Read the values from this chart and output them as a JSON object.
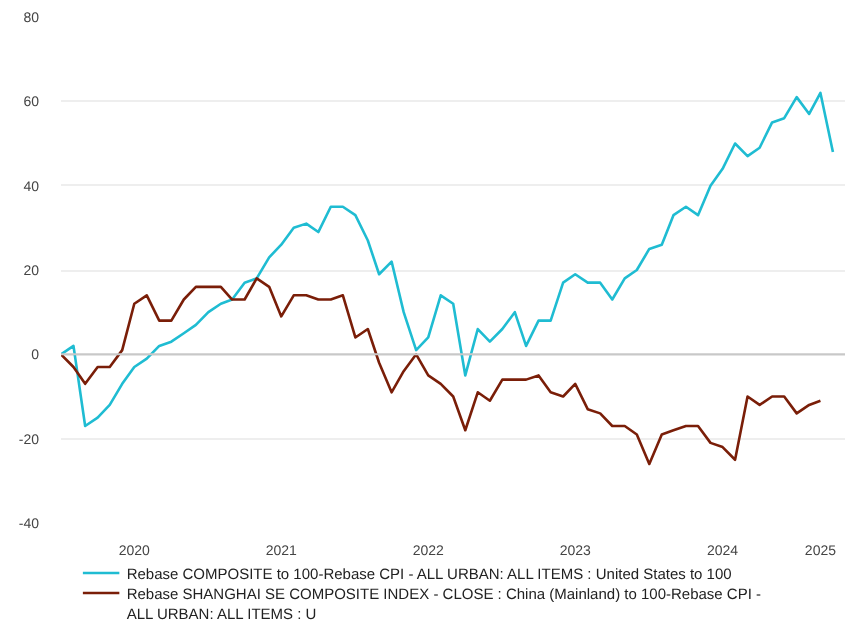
{
  "chart_data": {
    "type": "line",
    "x": [
      "2020-01",
      "2020-02",
      "2020-03",
      "2020-04",
      "2020-05",
      "2020-06",
      "2020-07",
      "2020-08",
      "2020-09",
      "2020-10",
      "2020-11",
      "2020-12",
      "2021-01",
      "2021-02",
      "2021-03",
      "2021-04",
      "2021-05",
      "2021-06",
      "2021-07",
      "2021-08",
      "2021-09",
      "2021-10",
      "2021-11",
      "2021-12",
      "2022-01",
      "2022-02",
      "2022-03",
      "2022-04",
      "2022-05",
      "2022-06",
      "2022-07",
      "2022-08",
      "2022-09",
      "2022-10",
      "2022-11",
      "2022-12",
      "2023-01",
      "2023-02",
      "2023-03",
      "2023-04",
      "2023-05",
      "2023-06",
      "2023-07",
      "2023-08",
      "2023-09",
      "2023-10",
      "2023-11",
      "2023-12",
      "2024-01",
      "2024-02",
      "2024-03",
      "2024-04",
      "2024-05",
      "2024-06",
      "2024-07",
      "2024-08",
      "2024-09",
      "2024-10",
      "2024-11",
      "2024-12",
      "2025-01",
      "2025-02",
      "2025-03",
      "2025-04"
    ],
    "series": [
      {
        "name": "Rebase COMPOSITE to 100-Rebase CPI - ALL URBAN: ALL ITEMS : United States to 100",
        "color": "#1fbcd2",
        "values": [
          0,
          2,
          -17,
          -15,
          -12,
          -7,
          -3,
          -1,
          2,
          3,
          5,
          7,
          10,
          12,
          13,
          17,
          18,
          23,
          26,
          30,
          31,
          29,
          35,
          35,
          33,
          27,
          19,
          22,
          10,
          1,
          4,
          14,
          12,
          -5,
          6,
          3,
          6,
          10,
          2,
          8,
          8,
          17,
          19,
          17,
          17,
          13,
          18,
          20,
          25,
          26,
          33,
          35,
          33,
          40,
          44,
          50,
          47,
          49,
          55,
          56,
          61,
          57,
          62,
          48
        ]
      },
      {
        "name": "Rebase SHANGHAI SE COMPOSITE INDEX - CLOSE : China (Mainland) to 100-Rebase CPI - ALL URBAN: ALL ITEMS : U",
        "color": "#7a1e08",
        "values": [
          0,
          -3,
          -7,
          -3,
          -3,
          1,
          12,
          14,
          8,
          8,
          13,
          16,
          16,
          16,
          13,
          13,
          18,
          16,
          9,
          14,
          14,
          13,
          13,
          14,
          4,
          6,
          -2,
          -9,
          -4,
          0,
          -5,
          -7,
          -10,
          -18,
          -9,
          -11,
          -6,
          -6,
          -6,
          -5,
          -9,
          -10,
          -7,
          -13,
          -14,
          -17,
          -17,
          -19,
          -26,
          -19,
          -18,
          -17,
          -17,
          -21,
          -22,
          -25,
          -10,
          -12,
          -10,
          -10,
          -14,
          -12,
          -11,
          null
        ]
      }
    ],
    "xlim": [
      "2020-01",
      "2025-05"
    ],
    "xticks": [
      {
        "value": "2020-07",
        "label": "2020"
      },
      {
        "value": "2021-07",
        "label": "2021"
      },
      {
        "value": "2022-07",
        "label": "2022"
      },
      {
        "value": "2023-07",
        "label": "2023"
      },
      {
        "value": "2024-07",
        "label": "2024"
      },
      {
        "value": "2025-03",
        "label": "2025"
      }
    ],
    "ylim": [
      -40,
      80
    ],
    "yticks": [
      -40,
      -20,
      0,
      20,
      40,
      60,
      80
    ],
    "grid": "y",
    "legend": "bottom",
    "marker": "none",
    "line_style": "solid",
    "ref_lines": [
      {
        "axis": "y",
        "value": 0,
        "label": null,
        "color": "#c8c8c8"
      }
    ]
  }
}
